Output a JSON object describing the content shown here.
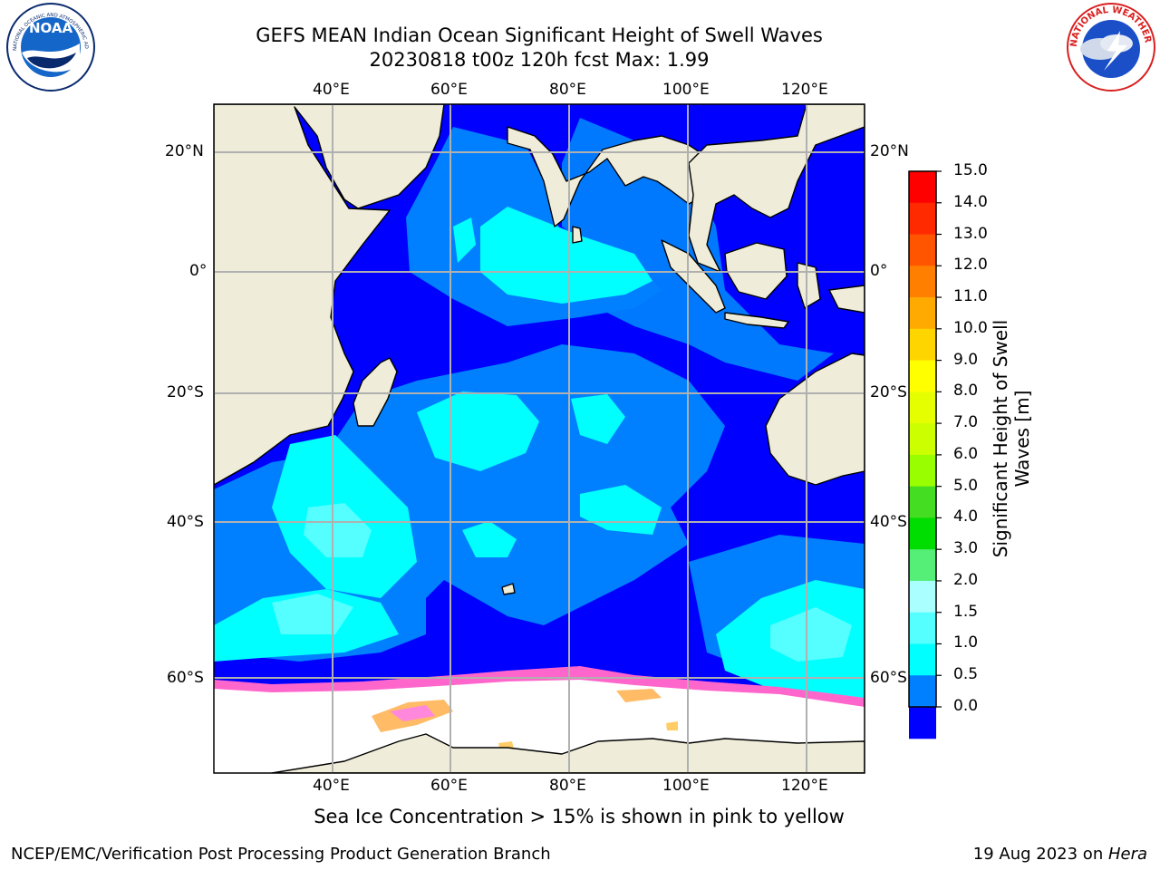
{
  "title": "GEFS MEAN Indian Ocean Significant Height of Swell Waves",
  "subtitle": "20230818 t00z 120h fcst   Max: 1.99",
  "sea_ice_note": "Sea Ice Concentration > 15% is shown in pink to yellow",
  "footer": {
    "left": "NCEP/EMC/Verification Post Processing Product Generation Branch",
    "date": "19 Aug 2023 on ",
    "machine": "Hera"
  },
  "logos": {
    "noaa": {
      "text": "NOAA",
      "ring_text": "NATIONAL OCEANIC AND ATMOSPHERIC ADMINISTRATION · U.S. DEPARTMENT OF COMMERCE"
    },
    "nws": {
      "ring_text": "NATIONAL WEATHER SERVICE"
    }
  },
  "map": {
    "lon_ticks": [
      "40°E",
      "60°E",
      "80°E",
      "100°E",
      "120°E"
    ],
    "lat_ticks": [
      "20°N",
      "0°",
      "20°S",
      "40°S",
      "60°S"
    ]
  },
  "colorbar": {
    "title": "Significant Height of Swell Waves [m]",
    "labels": [
      "15.0",
      "14.0",
      "13.0",
      "12.0",
      "11.0",
      "10.0",
      "9.0",
      "8.0",
      "7.0",
      "6.0",
      "5.0",
      "4.0",
      "3.0",
      "2.0",
      "1.5",
      "1.0",
      "0.5",
      "0.0"
    ],
    "colors": [
      "#ff0000",
      "#ff2a00",
      "#ff5500",
      "#ff8000",
      "#ffaa00",
      "#ffd500",
      "#ffff00",
      "#e6ff00",
      "#ccff00",
      "#99ff00",
      "#44dd22",
      "#00dd00",
      "#55ee77",
      "#aaffff",
      "#55ffff",
      "#00ffff",
      "#0080ff",
      "#0000ff"
    ]
  },
  "palette": {
    "land": "#efedd9",
    "ocean_low": "#0000ff",
    "ocean_mid": "#0080ff",
    "ocean_high": "#00ffff",
    "ocean_top": "#55ffff",
    "ice": "#ffffff",
    "ice_edge": "#ff66cc"
  }
}
